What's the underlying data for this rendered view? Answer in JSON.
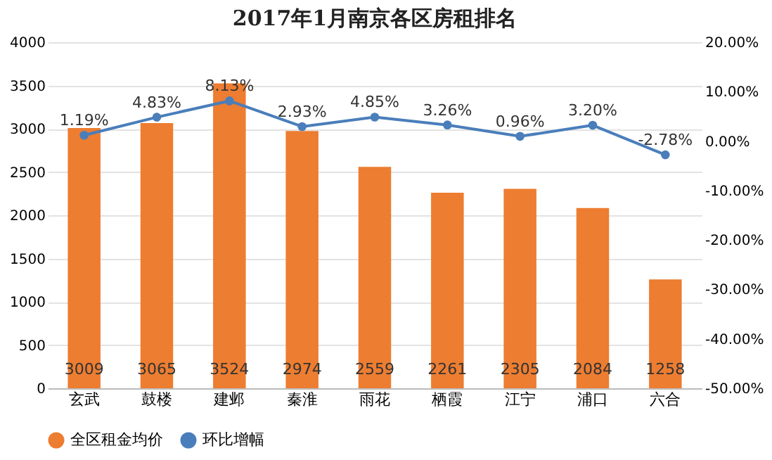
{
  "chart_data": {
    "type": "bar",
    "title": "2017年1月南京各区房租排名",
    "categories": [
      "玄武",
      "鼓楼",
      "建邺",
      "秦淮",
      "雨花",
      "栖霞",
      "江宁",
      "浦口",
      "六合"
    ],
    "series": [
      {
        "name": "全区租金均价",
        "color": "#ed7d31",
        "values": [
          3009,
          3065,
          3524,
          2974,
          2559,
          2261,
          2305,
          2084,
          1258
        ],
        "value_labels": [
          "3009",
          "3065",
          "3524",
          "2974",
          "2559",
          "2261",
          "2305",
          "2084",
          "1258"
        ]
      },
      {
        "name": "环比增幅",
        "type": "line",
        "axis": "y2",
        "color": "#4a7ebb",
        "values": [
          1.19,
          4.83,
          8.13,
          2.93,
          4.85,
          3.26,
          0.96,
          3.2,
          -2.78
        ],
        "value_labels": [
          "1.19%",
          "4.83%",
          "8.13%",
          "2.93%",
          "4.85%",
          "3.26%",
          "0.96%",
          "3.20%",
          "-2.78%"
        ]
      }
    ],
    "ylim": [
      0,
      4000
    ],
    "yticks": [
      0,
      500,
      1000,
      1500,
      2000,
      2500,
      3000,
      3500,
      4000
    ],
    "y2lim": [
      -50,
      20
    ],
    "y2ticks": [
      {
        "value": -50,
        "label": "-50.00%"
      },
      {
        "value": -40,
        "label": "-40.00%"
      },
      {
        "value": -30,
        "label": "-30.00%"
      },
      {
        "value": -20,
        "label": "-20.00%"
      },
      {
        "value": -10,
        "label": "-10.00%"
      },
      {
        "value": 0,
        "label": "0.00%"
      },
      {
        "value": 10,
        "label": "10.00%"
      },
      {
        "value": 20,
        "label": "20.00%"
      }
    ],
    "grid": "y",
    "legend": "bottom",
    "marker": "circle",
    "line_style": "solid"
  }
}
